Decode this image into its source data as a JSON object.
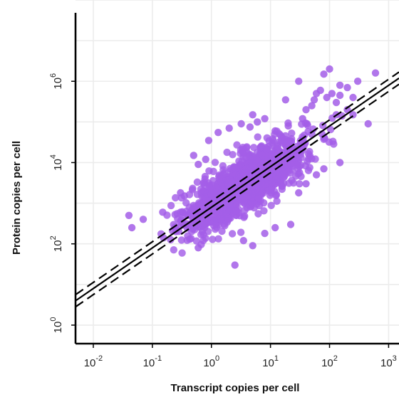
{
  "chart_data": {
    "type": "scatter",
    "title": "",
    "xlabel": "Transcript copies per cell",
    "ylabel": "Protein copies per cell",
    "x_scale": "log10",
    "y_scale": "log10",
    "xlim": [
      0.005,
      1500
    ],
    "ylim": [
      0.35,
      100000000
    ],
    "x_ticks": [
      0.01,
      0.1,
      1,
      10,
      100,
      1000
    ],
    "x_tick_labels": [
      {
        "base": "10",
        "exp": "-2"
      },
      {
        "base": "10",
        "exp": "-1"
      },
      {
        "base": "10",
        "exp": "0"
      },
      {
        "base": "10",
        "exp": "1"
      },
      {
        "base": "10",
        "exp": "2"
      },
      {
        "base": "10",
        "exp": "3"
      }
    ],
    "y_ticks": [
      1,
      100,
      10000,
      1000000
    ],
    "y_tick_labels": [
      {
        "base": "10",
        "exp": "0"
      },
      {
        "base": "10",
        "exp": "2"
      },
      {
        "base": "10",
        "exp": "4"
      },
      {
        "base": "10",
        "exp": "6"
      }
    ],
    "grid": true,
    "point_color": "#a35ee8",
    "points_outlier": [
      [
        0.04,
        500
      ],
      [
        0.045,
        250
      ],
      [
        0.07,
        400
      ],
      [
        0.15,
        600
      ],
      [
        0.25,
        200
      ],
      [
        0.3,
        600
      ],
      [
        0.35,
        1500
      ],
      [
        0.4,
        500
      ],
      [
        0.6,
        80
      ],
      [
        0.7,
        200
      ],
      [
        0.5,
        15000
      ],
      [
        0.8,
        12000
      ],
      [
        0.6,
        9000
      ],
      [
        0.3,
        1800
      ],
      [
        0.9,
        35000
      ],
      [
        1.3,
        55000
      ],
      [
        2.0,
        70000
      ],
      [
        3.2,
        90000
      ],
      [
        4.5,
        75000
      ],
      [
        6.0,
        100000
      ],
      [
        2.5,
        30
      ],
      [
        5.0,
        90
      ],
      [
        8.0,
        180
      ],
      [
        12,
        250
      ],
      [
        22,
        300
      ],
      [
        30,
        1800
      ],
      [
        40,
        3000
      ],
      [
        60,
        5000
      ],
      [
        80,
        7000
      ],
      [
        150,
        10000
      ],
      [
        8,
        120000
      ],
      [
        5,
        150000
      ],
      [
        20,
        80000
      ],
      [
        35,
        120000
      ],
      [
        40,
        200000
      ],
      [
        50,
        250000
      ],
      [
        55,
        350000
      ],
      [
        60,
        500000
      ],
      [
        70,
        600000
      ],
      [
        90,
        400000
      ],
      [
        110,
        500000
      ],
      [
        130,
        150000
      ],
      [
        150,
        800000
      ],
      [
        200,
        700000
      ],
      [
        250,
        400000
      ],
      [
        300,
        1000000
      ],
      [
        450,
        90000
      ],
      [
        600,
        1600000
      ],
      [
        100,
        2000000
      ],
      [
        80,
        1500000
      ],
      [
        200,
        200000
      ],
      [
        250,
        150000
      ],
      [
        130,
        300000
      ],
      [
        150,
        450000
      ],
      [
        30,
        1000000
      ],
      [
        18,
        350000
      ],
      [
        1.2,
        400
      ],
      [
        3.5,
        120
      ],
      [
        12,
        60000
      ],
      [
        2.0,
        700
      ]
    ],
    "cluster": {
      "count": 1350,
      "log10_x_mean": 0.6,
      "log10_y_mean": 3.5,
      "log10_x_sd": 0.5,
      "log10_y_sd": 0.55,
      "correlation": 0.78
    },
    "fit_line": {
      "slope": 1,
      "intercept_log10": 2.9,
      "style": "solid",
      "color": "#000000"
    },
    "confidence_lines": [
      {
        "slope": 1,
        "intercept_log10": 2.75,
        "style": "dashed",
        "color": "#000000"
      },
      {
        "slope": 1,
        "intercept_log10": 3.05,
        "style": "dashed",
        "color": "#000000"
      }
    ]
  }
}
